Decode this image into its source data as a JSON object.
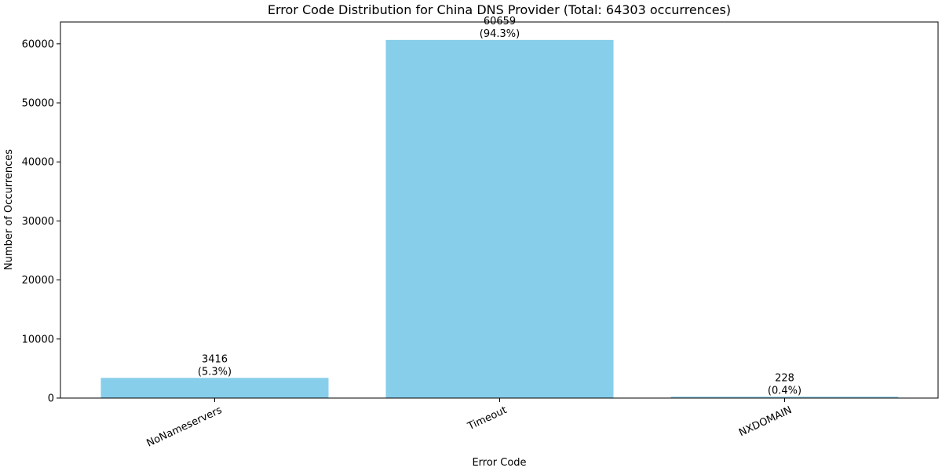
{
  "chart_data": {
    "type": "bar",
    "title": "Error Code Distribution for China DNS Provider (Total: 64303 occurrences)",
    "xlabel": "Error Code",
    "ylabel": "Number of Occurrences",
    "categories": [
      "NoNameservers",
      "Timeout",
      "NXDOMAIN"
    ],
    "values": [
      3416,
      60659,
      228
    ],
    "value_labels": [
      "3416",
      "60659",
      "228"
    ],
    "percent_labels": [
      "(5.3%)",
      "(94.3%)",
      "(0.4%)"
    ],
    "ylim": [
      0,
      63700
    ],
    "yticks": [
      0,
      10000,
      20000,
      30000,
      40000,
      50000,
      60000
    ],
    "ytick_labels": [
      "0",
      "10000",
      "20000",
      "30000",
      "40000",
      "50000",
      "60000"
    ],
    "bar_color": "#87CEEB",
    "grid": false,
    "legend": "none"
  }
}
